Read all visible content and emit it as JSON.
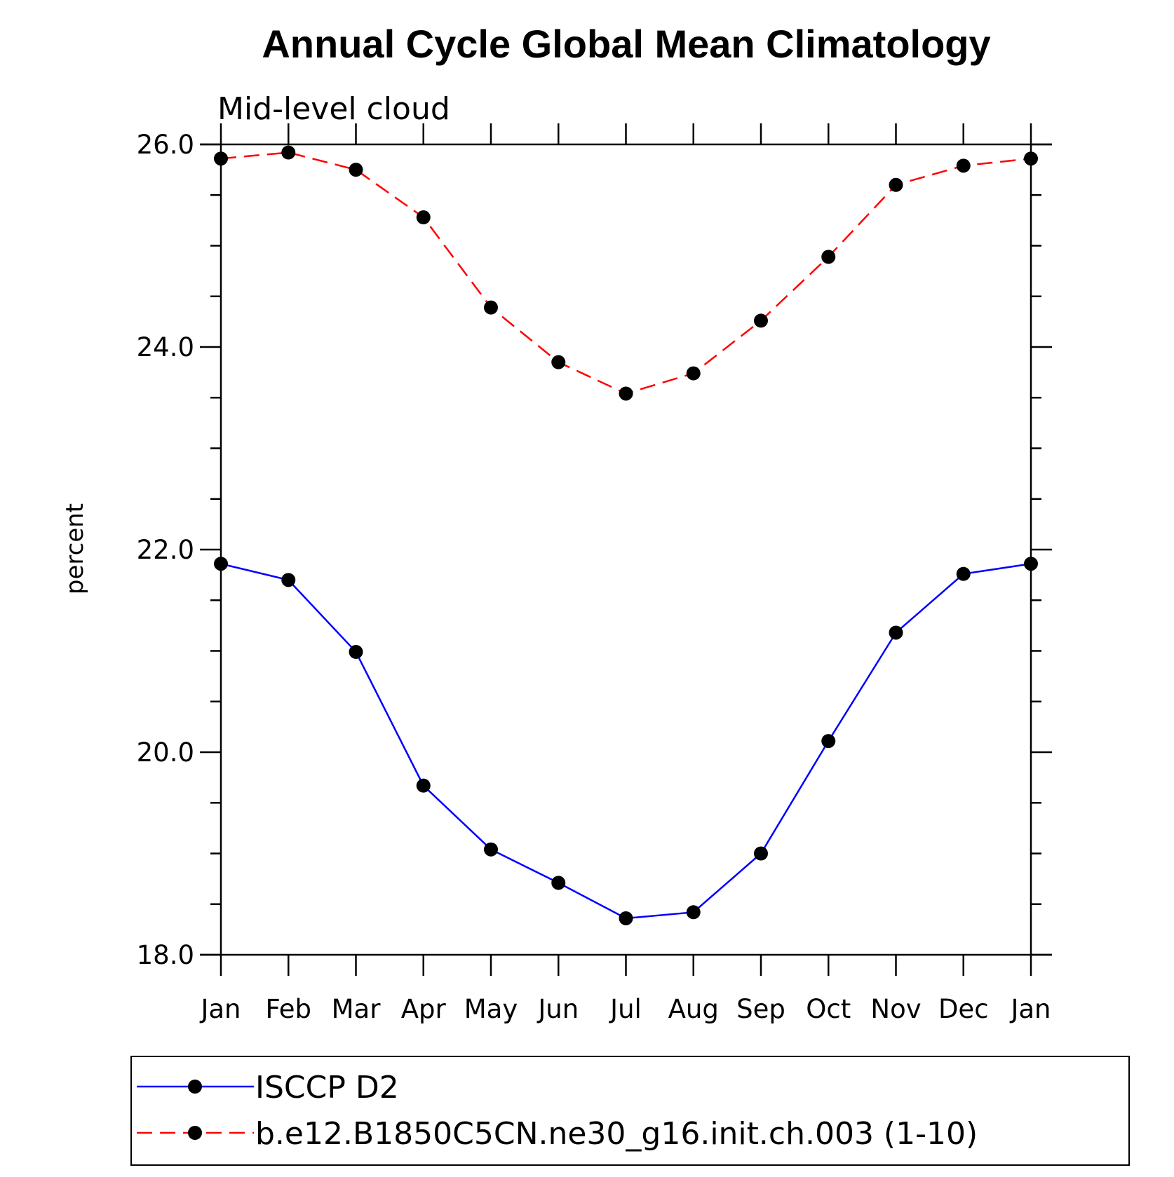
{
  "chart_data": {
    "type": "line",
    "title": "Annual Cycle Global Mean Climatology",
    "subtitle": "Mid-level cloud",
    "xlabel": "",
    "ylabel": "percent",
    "categories": [
      "Jan",
      "Feb",
      "Mar",
      "Apr",
      "May",
      "Jun",
      "Jul",
      "Aug",
      "Sep",
      "Oct",
      "Nov",
      "Dec",
      "Jan"
    ],
    "ylim": [
      18.0,
      26.0
    ],
    "yticks": [
      "18.0",
      "20.0",
      "22.0",
      "24.0",
      "26.0"
    ],
    "grid": false,
    "legend_position": "bottom",
    "series": [
      {
        "name": "ISCCP D2",
        "color": "#0000ff",
        "line_style": "solid",
        "marker": "filled-circle",
        "values": [
          21.86,
          21.7,
          20.99,
          19.67,
          19.04,
          18.71,
          18.36,
          18.42,
          19.0,
          20.11,
          21.18,
          21.76,
          21.86
        ]
      },
      {
        "name": "b.e12.B1850C5CN.ne30_g16.init.ch.003 (1-10)",
        "color": "#ff0000",
        "line_style": "dashed",
        "marker": "filled-circle",
        "values": [
          25.86,
          25.92,
          25.75,
          25.28,
          24.39,
          23.85,
          23.54,
          23.74,
          24.26,
          24.89,
          25.6,
          25.79,
          25.86
        ]
      }
    ]
  }
}
